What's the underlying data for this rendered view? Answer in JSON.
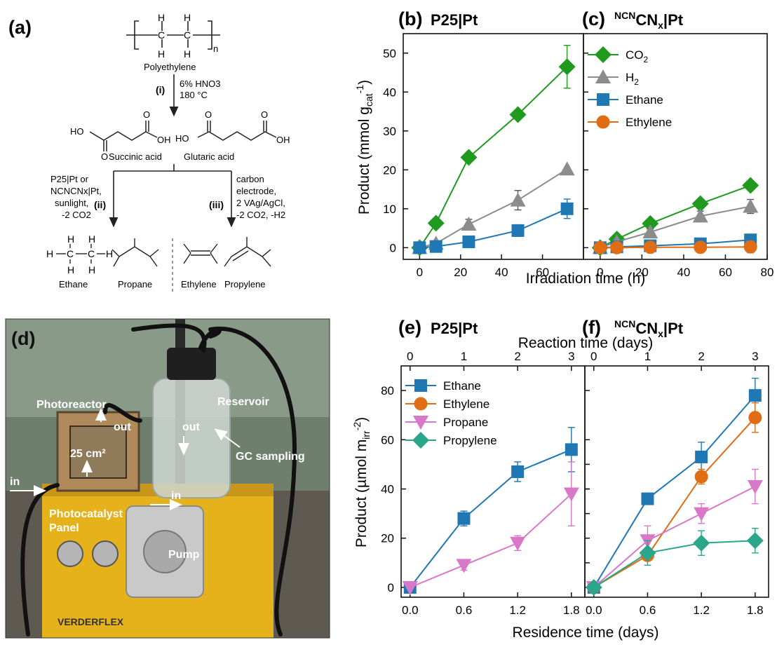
{
  "panel_a": {
    "label": "(a)",
    "polymer": "Polyethylene",
    "polymer_n": "n",
    "step_i": "(i)",
    "step_i_conditions": [
      "6% HNO3",
      "180 °C"
    ],
    "acid1": "Succinic acid",
    "acid2": "Glutaric acid",
    "step_ii": "(ii)",
    "step_ii_conditions": [
      "P25|Pt or",
      "NCNCNx|Pt,",
      "sunlight,",
      "-2 CO2"
    ],
    "step_iii": "(iii)",
    "step_iii_conditions": [
      "carbon",
      "electrode,",
      "2 VAg/AgCl,",
      "-2 CO2, -H2"
    ],
    "products": [
      "Ethane",
      "Propane",
      "Ethylene",
      "Propylene"
    ],
    "atoms": {
      "H": "H",
      "C": "C",
      "O": "O",
      "HO": "HO",
      "OH": "OH"
    }
  },
  "panel_d": {
    "label": "(d)",
    "labels": {
      "photoreactor": "Photoreactor",
      "out1": "out",
      "out2": "out",
      "reservoir": "Reservoir",
      "gc": "GC sampling",
      "area": "25 cm²",
      "in1": "in",
      "in2": "in",
      "panel1": "Photocatalyst",
      "panel2": "Panel",
      "pump": "Pump",
      "brand": "VERDERFLEX"
    }
  },
  "colors": {
    "co2": "#1f9a1f",
    "h2": "#8c8c8c",
    "ethane": "#1f77b4",
    "ethylene": "#e06c14",
    "propane": "#d977c9",
    "propylene": "#2aa68a"
  },
  "chart_data": [
    {
      "id": "b",
      "type": "line",
      "panel_label": "(b)",
      "title": "P25|Pt",
      "xlabel": "Irradiation time (h)",
      "ylabel": "Product (mmol gcat-1)",
      "xlim": [
        -8,
        80
      ],
      "ylim": [
        -3,
        55
      ],
      "xticks": [
        0,
        20,
        40,
        60
      ],
      "yticks": [
        0,
        10,
        20,
        30,
        40,
        50
      ],
      "series": [
        {
          "name": "CO2",
          "color": "#1f9a1f",
          "marker": "diamond",
          "x": [
            0,
            8,
            24,
            48,
            72
          ],
          "y": [
            0,
            6.3,
            23.2,
            34.2,
            46.5
          ],
          "err": [
            0,
            0,
            0,
            0,
            5.5
          ]
        },
        {
          "name": "H2",
          "color": "#8c8c8c",
          "marker": "triangle",
          "x": [
            0,
            8,
            24,
            48,
            72
          ],
          "y": [
            0,
            1.1,
            6.0,
            12.2,
            20.2
          ],
          "err": [
            0,
            0.5,
            1.3,
            2.5,
            0
          ]
        },
        {
          "name": "Ethane",
          "color": "#1f77b4",
          "marker": "square",
          "x": [
            0,
            8,
            24,
            48,
            72
          ],
          "y": [
            0,
            0.3,
            1.5,
            4.4,
            10.0
          ],
          "err": [
            0,
            0,
            1.2,
            1.5,
            2.5
          ]
        }
      ]
    },
    {
      "id": "c",
      "type": "line",
      "panel_label": "(c)",
      "title_super": "NCN",
      "title": "CNx|Pt",
      "xlim": [
        -8,
        80
      ],
      "ylim": [
        -3,
        55
      ],
      "xticks": [
        0,
        20,
        40,
        60,
        80
      ],
      "legend": [
        {
          "name": "CO2"
        },
        {
          "name": "H2"
        },
        {
          "name": "Ethane"
        },
        {
          "name": "Ethylene"
        }
      ],
      "series": [
        {
          "name": "CO2",
          "color": "#1f9a1f",
          "marker": "diamond",
          "x": [
            0,
            8,
            24,
            48,
            72
          ],
          "y": [
            0,
            2.2,
            6.2,
            11.3,
            16.0
          ],
          "err": [
            0,
            0,
            0,
            0,
            0
          ]
        },
        {
          "name": "H2",
          "color": "#8c8c8c",
          "marker": "triangle",
          "x": [
            0,
            8,
            24,
            48,
            72
          ],
          "y": [
            0,
            1.5,
            4.0,
            8.1,
            10.6
          ],
          "err": [
            0,
            0,
            0.8,
            1.3,
            1.8
          ]
        },
        {
          "name": "Ethane",
          "color": "#1f77b4",
          "marker": "square",
          "x": [
            0,
            8,
            24,
            48,
            72
          ],
          "y": [
            0,
            0.2,
            0.5,
            1.0,
            2.0
          ],
          "err": [
            0,
            0.8,
            0.8,
            1.0,
            1.0
          ]
        },
        {
          "name": "Ethylene",
          "color": "#e06c14",
          "marker": "circle",
          "x": [
            0,
            8,
            24,
            48,
            72
          ],
          "y": [
            0,
            0,
            0.1,
            0.1,
            0.2
          ],
          "err": [
            0,
            0.8,
            1.0,
            1.0,
            1.5
          ]
        }
      ]
    },
    {
      "id": "e",
      "type": "line",
      "panel_label": "(e)",
      "title": "P25|Pt",
      "xlabel": "Residence time (days)",
      "x2label": "Reaction time (days)",
      "ylabel": "Product (µmol mirr-2)",
      "xlim": [
        -0.1,
        1.95
      ],
      "ylim": [
        -4,
        90
      ],
      "xticks": [
        0.0,
        0.6,
        1.2,
        1.8
      ],
      "xticklabels": [
        "0.0",
        "0.6",
        "1.2",
        "1.8"
      ],
      "x2ticks": [
        0,
        1,
        2,
        3
      ],
      "yticks": [
        0,
        20,
        40,
        60,
        80
      ],
      "legend": [
        {
          "name": "Ethane"
        },
        {
          "name": "Ethylene"
        },
        {
          "name": "Propane"
        },
        {
          "name": "Propylene"
        }
      ],
      "series": [
        {
          "name": "Ethane",
          "color": "#1f77b4",
          "marker": "square",
          "x": [
            0.0,
            0.6,
            1.2,
            1.8
          ],
          "y": [
            0,
            28,
            47,
            56
          ],
          "err": [
            0,
            3,
            4,
            9
          ]
        },
        {
          "name": "Propane",
          "color": "#d977c9",
          "marker": "tri-down",
          "x": [
            0.0,
            0.6,
            1.2,
            1.8
          ],
          "y": [
            0,
            9,
            18,
            38
          ],
          "err": [
            0,
            2,
            3,
            13
          ]
        }
      ]
    },
    {
      "id": "f",
      "type": "line",
      "panel_label": "(f)",
      "title_super": "NCN",
      "title": "CNx|Pt",
      "xlim": [
        -0.1,
        1.95
      ],
      "ylim": [
        -4,
        90
      ],
      "xticks": [
        0.0,
        0.6,
        1.2,
        1.8
      ],
      "xticklabels": [
        "0.0",
        "0.6",
        "1.2",
        "1.8"
      ],
      "x2ticks": [
        0,
        1,
        2,
        3
      ],
      "series": [
        {
          "name": "Ethane",
          "color": "#1f77b4",
          "marker": "square",
          "x": [
            0.0,
            0.6,
            1.2,
            1.8
          ],
          "y": [
            0,
            36,
            53,
            78
          ],
          "err": [
            0,
            2,
            6,
            7
          ]
        },
        {
          "name": "Ethylene",
          "color": "#e06c14",
          "marker": "circle",
          "x": [
            0.0,
            0.6,
            1.2,
            1.8
          ],
          "y": [
            0,
            13,
            45,
            69
          ],
          "err": [
            0,
            2,
            3,
            6
          ]
        },
        {
          "name": "Propane",
          "color": "#d977c9",
          "marker": "tri-down",
          "x": [
            0.0,
            0.6,
            1.2,
            1.8
          ],
          "y": [
            0,
            19,
            30,
            41
          ],
          "err": [
            0,
            6,
            4,
            7
          ]
        },
        {
          "name": "Propylene",
          "color": "#2aa68a",
          "marker": "diamond",
          "x": [
            0.0,
            0.6,
            1.2,
            1.8
          ],
          "y": [
            0,
            14,
            18,
            19
          ],
          "err": [
            0,
            5,
            5,
            5
          ]
        }
      ]
    }
  ]
}
